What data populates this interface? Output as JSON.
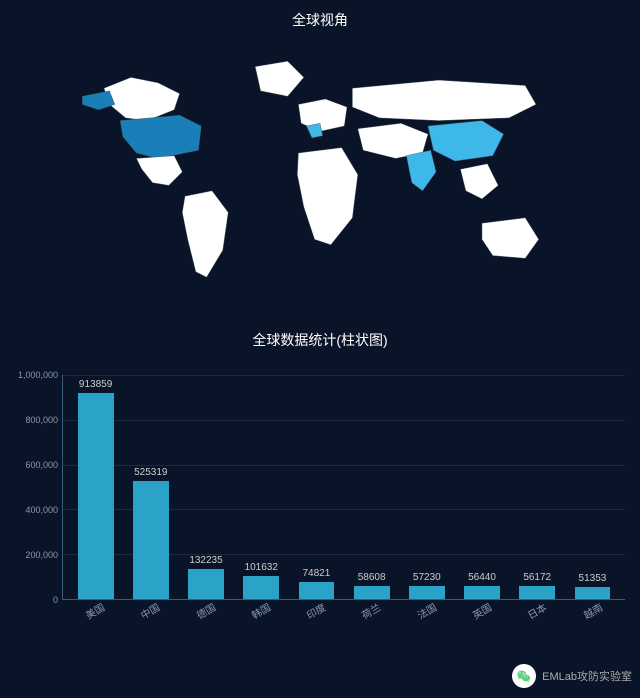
{
  "map": {
    "title": "全球视角",
    "base_fill": "#ffffff",
    "stroke": "#445566",
    "background": "#0a1428",
    "highlights": [
      {
        "name": "USA",
        "color": "#1a7fb8"
      },
      {
        "name": "China",
        "color": "#3db8e8"
      },
      {
        "name": "India",
        "color": "#3db8e8"
      },
      {
        "name": "France",
        "color": "#3db8e8"
      }
    ]
  },
  "chart": {
    "title": "全球数据统计(柱状图)",
    "type": "bar",
    "ylim": [
      0,
      1000000
    ],
    "ytick_step": 200000,
    "yticks": [
      {
        "v": 0,
        "label": "0"
      },
      {
        "v": 200000,
        "label": "200,000"
      },
      {
        "v": 400000,
        "label": "400,000"
      },
      {
        "v": 600000,
        "label": "600,000"
      },
      {
        "v": 800000,
        "label": "800,000"
      },
      {
        "v": 1000000,
        "label": "1,000,000"
      }
    ],
    "bar_color": "#2ba3c9",
    "axis_color": "#3a5a7a",
    "grid_color": "#1a2a40",
    "label_color": "#8899aa",
    "value_color": "#cccccc",
    "label_fontsize": 10,
    "value_fontsize": 10,
    "title_fontsize": 14,
    "bars": [
      {
        "label": "美国",
        "value": 913859
      },
      {
        "label": "中国",
        "value": 525319
      },
      {
        "label": "德国",
        "value": 132235
      },
      {
        "label": "韩国",
        "value": 101632
      },
      {
        "label": "印度",
        "value": 74821
      },
      {
        "label": "荷兰",
        "value": 58608
      },
      {
        "label": "法国",
        "value": 57230
      },
      {
        "label": "英国",
        "value": 56440
      },
      {
        "label": "日本",
        "value": 56172
      },
      {
        "label": "越南",
        "value": 51353
      }
    ]
  },
  "watermark": {
    "text": "EMLab攻防实验室",
    "icon_name": "wechat-icon",
    "icon_bg": "#ffffff",
    "icon_fg": "#5fcf80"
  }
}
